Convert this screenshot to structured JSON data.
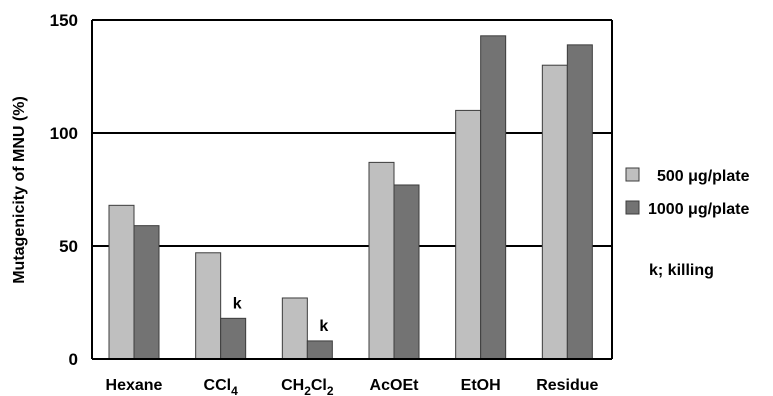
{
  "chart_data": {
    "type": "bar",
    "ylabel": "Mutagenicity of MNU (%)",
    "ylim": [
      0,
      150
    ],
    "yticks": [
      0,
      50,
      100,
      150
    ],
    "grid": true,
    "categories": [
      {
        "label": "Hexane"
      },
      {
        "label": "CCl",
        "sub": "4"
      },
      {
        "parts": [
          {
            "t": "CH"
          },
          {
            "s": "2"
          },
          {
            "t": "Cl"
          },
          {
            "s": "2"
          }
        ]
      },
      {
        "label": "AcOEt"
      },
      {
        "label": "EtOH"
      },
      {
        "label": "Residue"
      }
    ],
    "series": [
      {
        "name": "500 μg/plate",
        "color": "#bfbfbf",
        "values": [
          68,
          47,
          27,
          87,
          110,
          130
        ]
      },
      {
        "name": "1000 μg/plate",
        "color": "#737373",
        "values": [
          59,
          18,
          8,
          77,
          143,
          139
        ]
      }
    ],
    "annotations": [
      {
        "category_index": 1,
        "series_index": 1,
        "text": "k"
      },
      {
        "category_index": 2,
        "series_index": 1,
        "text": "k"
      }
    ],
    "legend_position": "right",
    "note": "k; killing"
  }
}
